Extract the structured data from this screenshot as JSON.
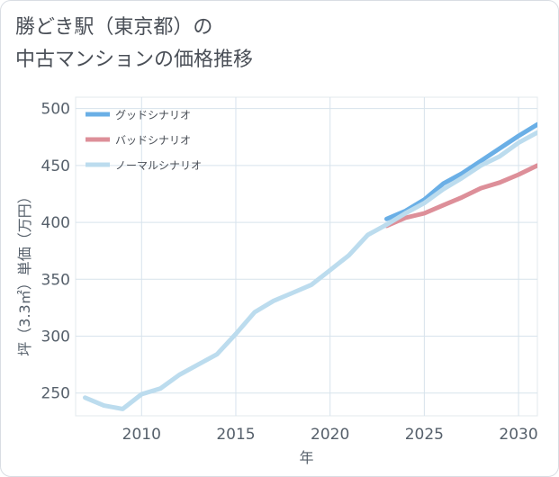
{
  "title": {
    "line1": "勝どき駅（東京都）の",
    "line2": "中古マンションの価格推移"
  },
  "chart_data": {
    "type": "line",
    "xlabel": "年",
    "ylabel": "坪（3.3㎡）単価（万円）",
    "xlim": [
      2006.5,
      2031
    ],
    "ylim": [
      230,
      510
    ],
    "xticks": [
      2010,
      2015,
      2020,
      2025,
      2030
    ],
    "yticks": [
      250,
      300,
      350,
      400,
      450,
      500
    ],
    "grid": true,
    "legend_position": "top-left",
    "series": [
      {
        "name": "グッドシナリオ",
        "color": "#6aafe6",
        "x": [
          2023,
          2024,
          2025,
          2026,
          2027,
          2028,
          2029,
          2030,
          2031
        ],
        "y": [
          403,
          410,
          420,
          434,
          443,
          454,
          465,
          476,
          486
        ]
      },
      {
        "name": "バッドシナリオ",
        "color": "#dd8f99",
        "x": [
          2023,
          2024,
          2025,
          2026,
          2027,
          2028,
          2029,
          2030,
          2031
        ],
        "y": [
          397,
          404,
          408,
          415,
          422,
          430,
          435,
          442,
          450
        ]
      },
      {
        "name": "ノーマルシナリオ",
        "color": "#bcdcee",
        "x": [
          2007,
          2008,
          2009,
          2010,
          2011,
          2012,
          2013,
          2014,
          2015,
          2016,
          2017,
          2018,
          2019,
          2020,
          2021,
          2022,
          2023,
          2024,
          2025,
          2026,
          2027,
          2028,
          2029,
          2030,
          2031
        ],
        "y": [
          246,
          239,
          236,
          249,
          254,
          266,
          275,
          284,
          302,
          321,
          331,
          338,
          345,
          358,
          371,
          389,
          398,
          408,
          417,
          429,
          439,
          450,
          458,
          470,
          479
        ]
      }
    ]
  }
}
